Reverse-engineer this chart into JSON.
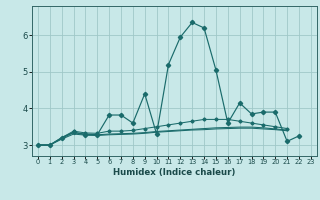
{
  "title": "",
  "xlabel": "Humidex (Indice chaleur)",
  "bg_color": "#c8e8e8",
  "line_color": "#1a6b6b",
  "grid_color": "#a0c8c8",
  "xlim": [
    -0.5,
    23.5
  ],
  "ylim": [
    2.7,
    6.8
  ],
  "x": [
    0,
    1,
    2,
    3,
    4,
    5,
    6,
    7,
    8,
    9,
    10,
    11,
    12,
    13,
    14,
    15,
    16,
    17,
    18,
    19,
    20,
    21,
    22,
    23
  ],
  "line1": [
    3.0,
    3.0,
    3.2,
    3.35,
    3.28,
    3.28,
    3.82,
    3.82,
    3.6,
    4.4,
    3.3,
    5.2,
    5.95,
    6.35,
    6.2,
    5.05,
    3.6,
    4.15,
    3.85,
    3.9,
    3.9,
    3.1,
    3.25,
    null
  ],
  "line2": [
    3.0,
    3.0,
    3.2,
    3.38,
    3.33,
    3.32,
    3.38,
    3.38,
    3.4,
    3.45,
    3.5,
    3.55,
    3.6,
    3.65,
    3.7,
    3.7,
    3.7,
    3.65,
    3.6,
    3.55,
    3.5,
    3.45,
    null,
    null
  ],
  "line3": [
    3.0,
    3.0,
    3.18,
    3.34,
    3.3,
    3.28,
    3.3,
    3.31,
    3.32,
    3.34,
    3.37,
    3.39,
    3.41,
    3.43,
    3.45,
    3.47,
    3.48,
    3.49,
    3.49,
    3.47,
    3.44,
    3.41,
    null,
    null
  ],
  "line4": [
    3.0,
    3.0,
    3.16,
    3.3,
    3.27,
    3.26,
    3.28,
    3.29,
    3.3,
    3.32,
    3.35,
    3.37,
    3.39,
    3.41,
    3.42,
    3.44,
    3.45,
    3.46,
    3.46,
    3.44,
    3.42,
    3.39,
    null,
    null
  ],
  "yticks": [
    3,
    4,
    5,
    6
  ],
  "xticks": [
    0,
    1,
    2,
    3,
    4,
    5,
    6,
    7,
    8,
    9,
    10,
    11,
    12,
    13,
    14,
    15,
    16,
    17,
    18,
    19,
    20,
    21,
    22,
    23
  ]
}
